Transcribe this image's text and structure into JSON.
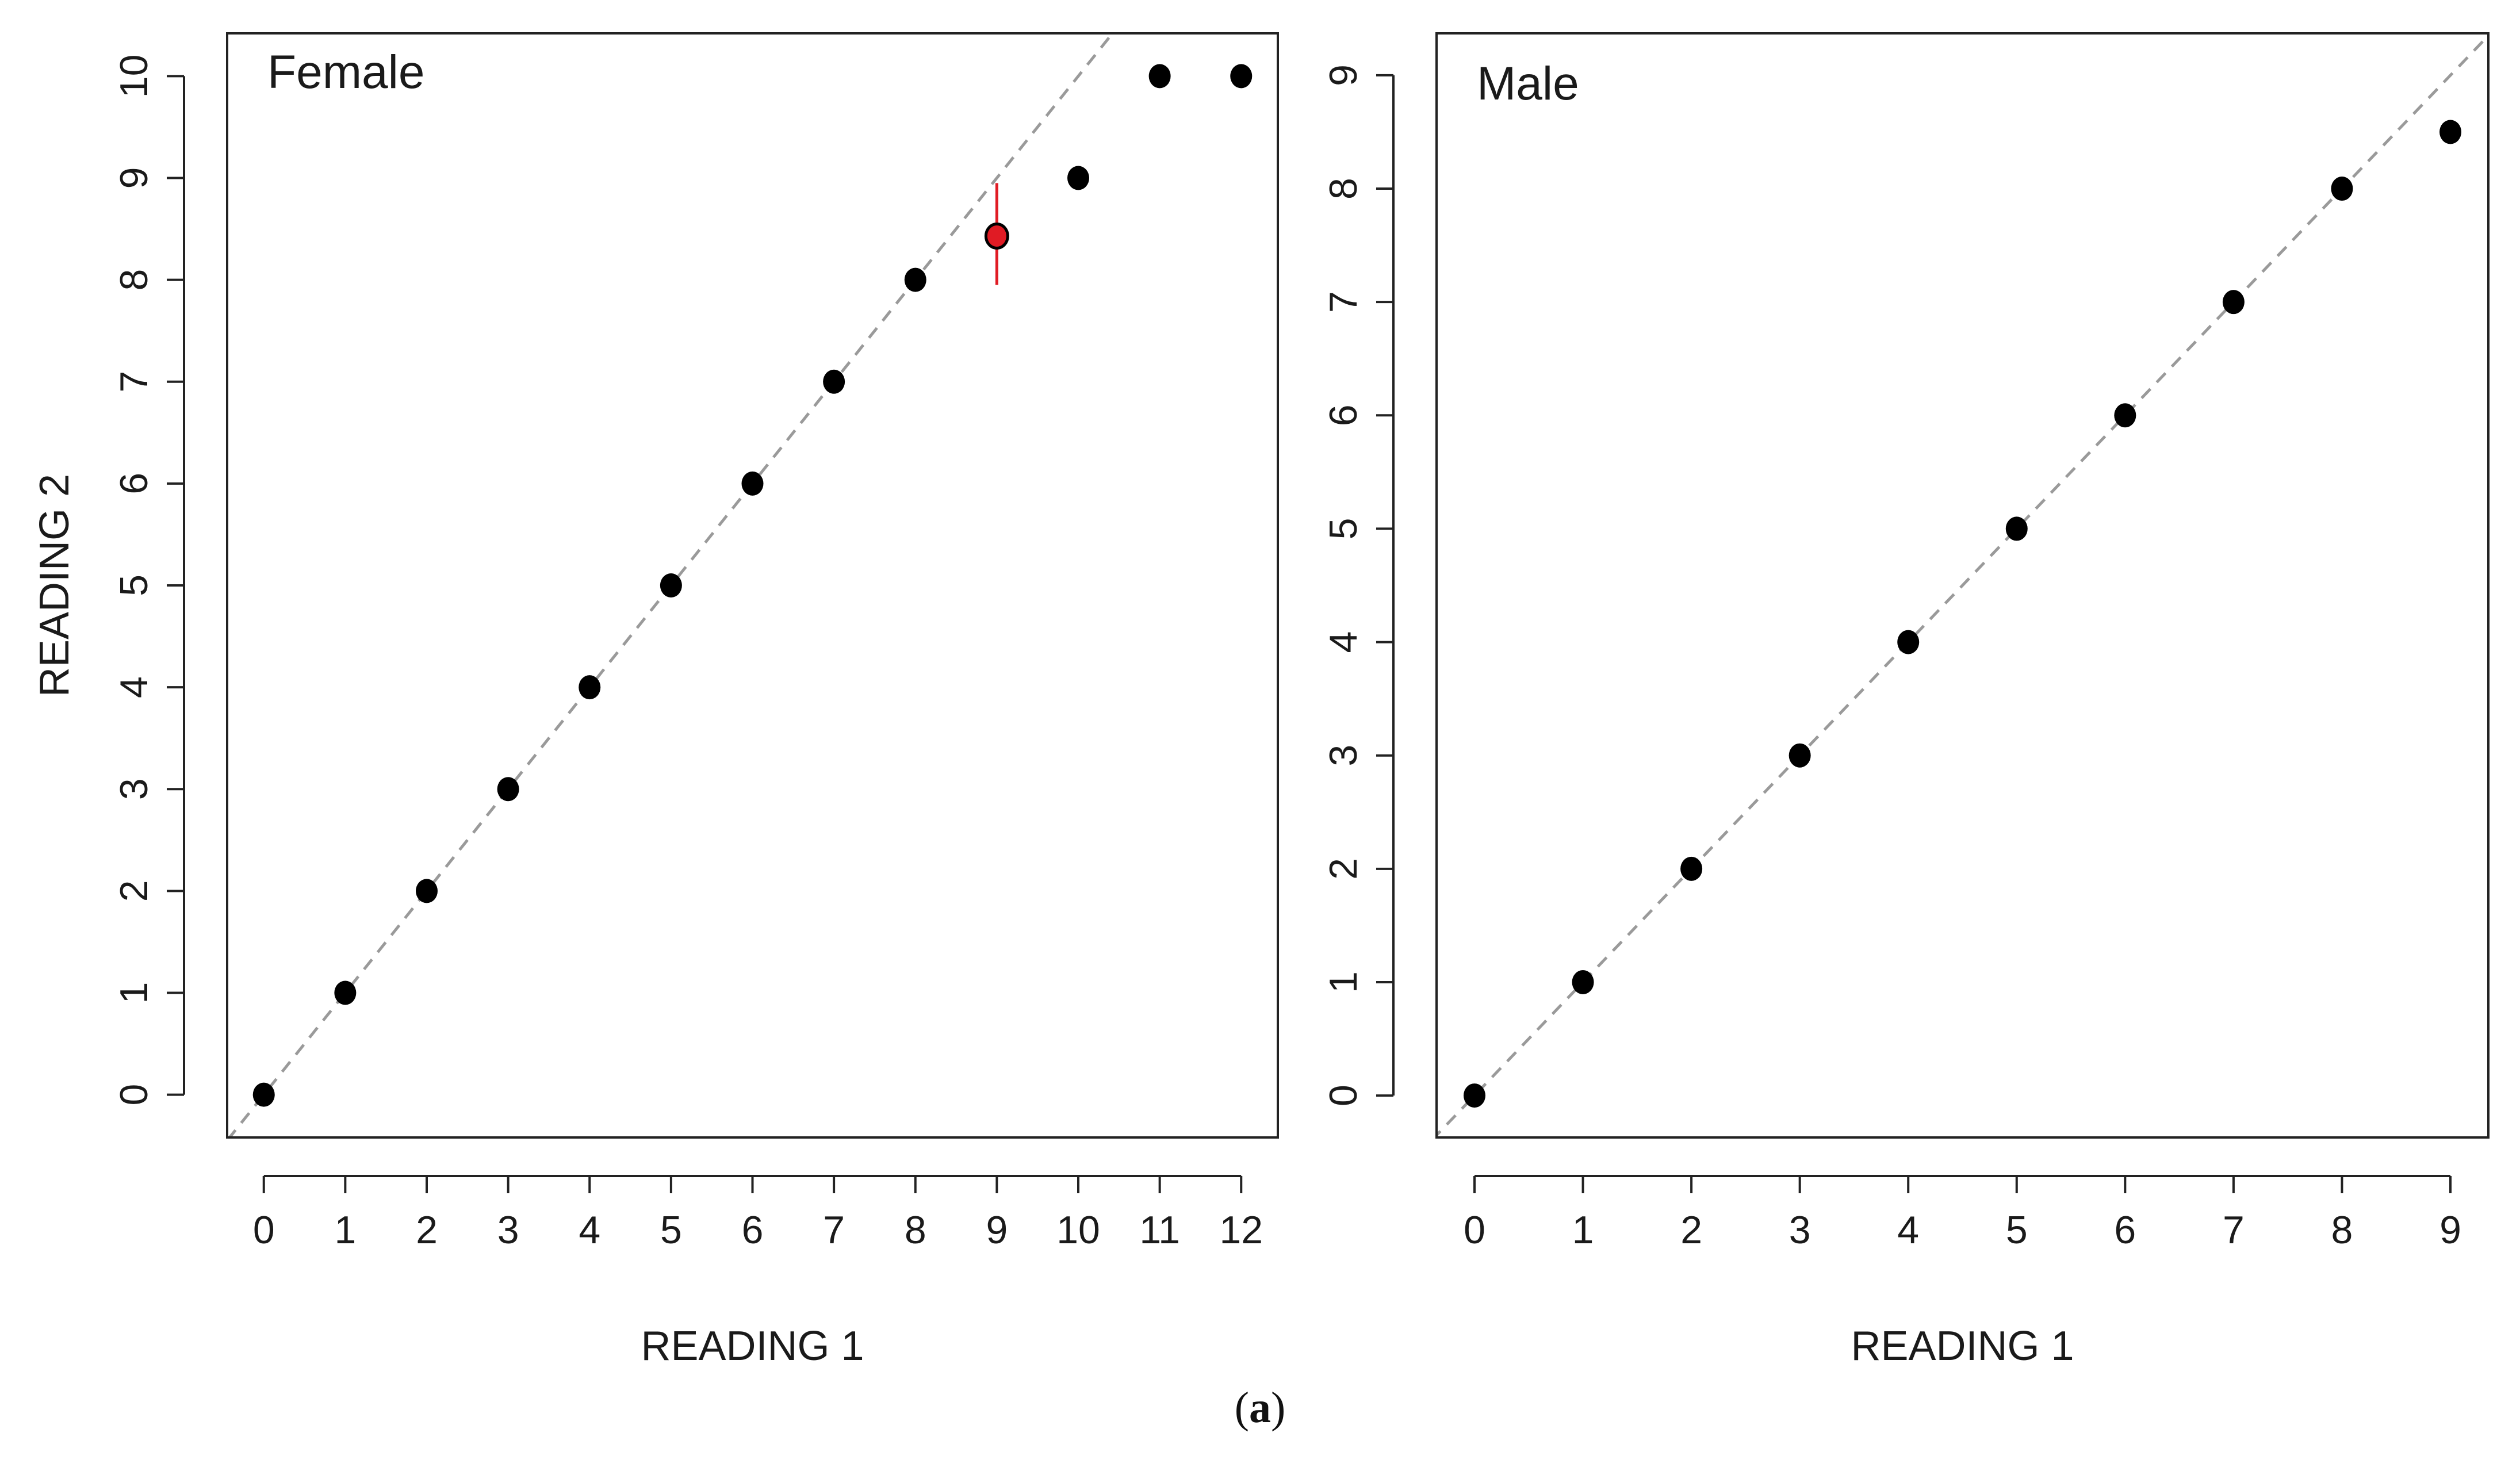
{
  "caption": {
    "open": "(",
    "letter": "a",
    "close": ")"
  },
  "chart_data": [
    {
      "type": "scatter",
      "title": "Female",
      "xlabel": "READING 1",
      "ylabel": "READING 2",
      "xlim": [
        -0.45,
        12.45
      ],
      "ylim": [
        -0.42,
        10.42
      ],
      "xticks": [
        0,
        1,
        2,
        3,
        4,
        5,
        6,
        7,
        8,
        9,
        10,
        11,
        12
      ],
      "yticks": [
        0,
        1,
        2,
        3,
        4,
        5,
        6,
        7,
        8,
        9,
        10
      ],
      "reference_line": "y = x (dashed gray)",
      "grid": false,
      "series": [
        {
          "color": "#000000",
          "points": [
            [
              0,
              0
            ],
            [
              1,
              1
            ],
            [
              2,
              2
            ],
            [
              3,
              3
            ],
            [
              4,
              4
            ],
            [
              5,
              5
            ],
            [
              6,
              6
            ],
            [
              7,
              7
            ],
            [
              8,
              8
            ],
            [
              10,
              9
            ],
            [
              11,
              10
            ],
            [
              12,
              10
            ]
          ]
        },
        {
          "color": "#e01b24",
          "points": [
            [
              9,
              8.43
            ]
          ],
          "error_range": [
            [
              7.95,
              8.95
            ]
          ]
        }
      ]
    },
    {
      "type": "scatter",
      "title": "Male",
      "xlabel": "READING 1",
      "ylabel": "",
      "xlim": [
        -0.35,
        9.35
      ],
      "ylim": [
        -0.37,
        9.37
      ],
      "xticks": [
        0,
        1,
        2,
        3,
        4,
        5,
        6,
        7,
        8,
        9
      ],
      "yticks": [
        0,
        1,
        2,
        3,
        4,
        5,
        6,
        7,
        8,
        9
      ],
      "reference_line": "y = x (dashed gray)",
      "grid": false,
      "series": [
        {
          "color": "#000000",
          "points": [
            [
              0,
              0
            ],
            [
              1,
              1
            ],
            [
              2,
              2
            ],
            [
              3,
              3
            ],
            [
              4,
              4
            ],
            [
              5,
              5
            ],
            [
              6,
              6
            ],
            [
              7,
              7
            ],
            [
              8,
              8
            ],
            [
              9,
              8.5
            ]
          ]
        }
      ]
    }
  ]
}
